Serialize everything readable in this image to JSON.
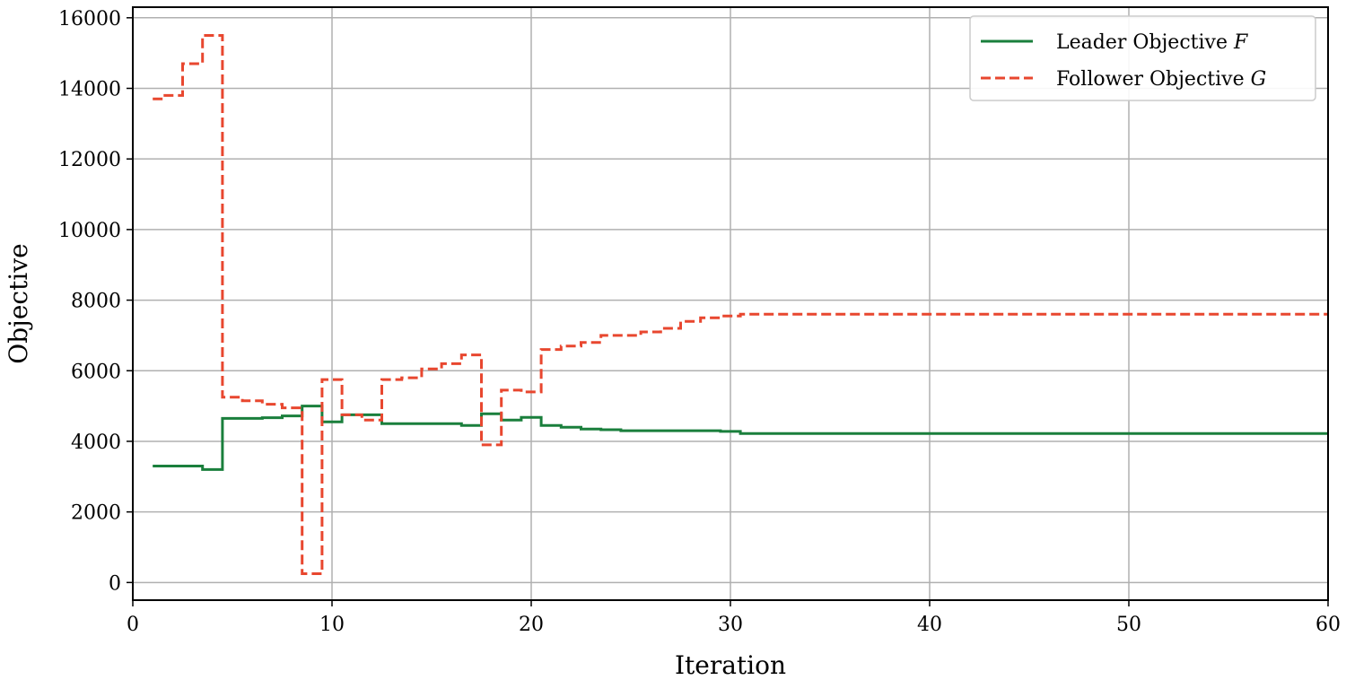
{
  "chart_data": {
    "type": "line",
    "title": "",
    "xlabel": "Iteration",
    "ylabel": "Objective",
    "xlim": [
      0,
      60
    ],
    "ylim": [
      -500,
      16300
    ],
    "xticks": [
      "0",
      "10",
      "20",
      "30",
      "40",
      "50",
      "60"
    ],
    "yticks": [
      "0",
      "2000",
      "4000",
      "6000",
      "8000",
      "10000",
      "12000",
      "14000",
      "16000"
    ],
    "grid": true,
    "legend_position": "top-right",
    "step": "mid",
    "x": [
      1,
      2,
      3,
      4,
      5,
      6,
      7,
      8,
      9,
      10,
      11,
      12,
      13,
      14,
      15,
      16,
      17,
      18,
      19,
      20,
      21,
      22,
      23,
      24,
      25,
      26,
      27,
      28,
      29,
      30,
      31,
      32,
      33,
      34,
      35,
      36,
      37,
      38,
      39,
      40,
      41,
      42,
      43,
      44,
      45,
      46,
      47,
      48,
      49,
      50,
      51,
      52,
      53,
      54,
      55,
      56,
      57,
      58,
      59,
      60
    ],
    "series": [
      {
        "name": "Leader Objective",
        "name_var": "F",
        "color": "#1a7f3c",
        "style": "solid",
        "values": [
          3300,
          3300,
          3300,
          3200,
          4650,
          4650,
          4670,
          4720,
          5000,
          4550,
          4750,
          4750,
          4500,
          4500,
          4500,
          4500,
          4450,
          4780,
          4600,
          4680,
          4450,
          4400,
          4350,
          4330,
          4300,
          4300,
          4300,
          4300,
          4300,
          4280,
          4220,
          4220,
          4220,
          4220,
          4220,
          4220,
          4220,
          4220,
          4220,
          4220,
          4220,
          4220,
          4220,
          4220,
          4220,
          4220,
          4220,
          4220,
          4220,
          4220,
          4220,
          4220,
          4220,
          4220,
          4220,
          4220,
          4220,
          4220,
          4220,
          4220
        ]
      },
      {
        "name": "Follower Objective",
        "name_var": "G",
        "color": "#e8472f",
        "style": "dashed",
        "values": [
          13700,
          13800,
          14700,
          15500,
          5250,
          5150,
          5050,
          4950,
          250,
          5750,
          4750,
          4600,
          5750,
          5800,
          6050,
          6200,
          6450,
          3900,
          5450,
          5400,
          6600,
          6700,
          6800,
          7000,
          7000,
          7100,
          7200,
          7400,
          7500,
          7550,
          7600,
          7600,
          7600,
          7600,
          7600,
          7600,
          7600,
          7600,
          7600,
          7600,
          7600,
          7600,
          7600,
          7600,
          7600,
          7600,
          7600,
          7600,
          7600,
          7600,
          7600,
          7600,
          7600,
          7600,
          7600,
          7600,
          7600,
          7600,
          7600,
          7600
        ]
      }
    ]
  }
}
